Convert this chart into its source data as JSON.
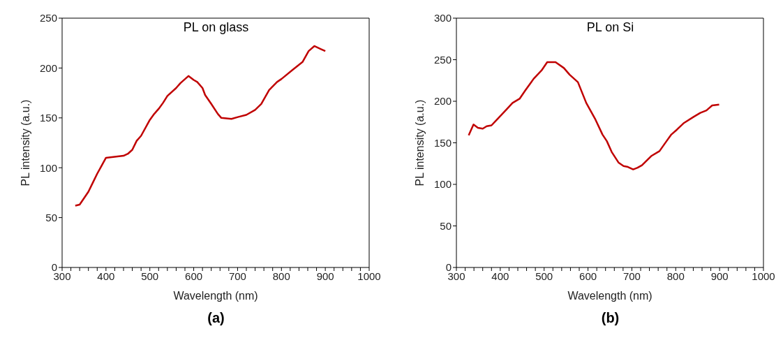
{
  "chart_data": [
    {
      "type": "line",
      "title": "PL on glass",
      "xlabel": "Wavelength (nm)",
      "ylabel": "PL intensity (a.u.)",
      "annotations": [
        "(a)"
      ],
      "x": [
        330,
        340,
        360,
        370,
        380,
        390,
        400,
        420,
        440,
        450,
        460,
        470,
        480,
        500,
        510,
        520,
        530,
        540,
        560,
        570,
        588,
        600,
        608,
        620,
        626,
        640,
        655,
        663,
        686,
        702,
        720,
        740,
        754,
        772,
        790,
        800,
        825,
        848,
        862,
        875,
        890,
        900
      ],
      "series": [
        {
          "color": "#c00000",
          "values": [
            62,
            63,
            76,
            85,
            94,
            102,
            110,
            111,
            112,
            114,
            118,
            127,
            132,
            148,
            154,
            159,
            165,
            172,
            180,
            185,
            192,
            188,
            186,
            180,
            173,
            164,
            154,
            150,
            149,
            151,
            153,
            158,
            164,
            178,
            186,
            189,
            198,
            206,
            217,
            222,
            219,
            217
          ]
        }
      ],
      "xlim": [
        300,
        1000
      ],
      "ylim": [
        0,
        250
      ],
      "xticks": [
        300,
        {
          "value": 320,
          "label": null
        },
        {
          "value": 340,
          "label": null
        },
        {
          "value": 360,
          "label": null
        },
        {
          "value": 380,
          "label": null
        },
        400,
        {
          "value": 420,
          "label": null
        },
        {
          "value": 440,
          "label": null
        },
        {
          "value": 460,
          "label": null
        },
        {
          "value": 480,
          "label": null
        },
        500,
        {
          "value": 520,
          "label": null
        },
        {
          "value": 540,
          "label": null
        },
        {
          "value": 560,
          "label": null
        },
        {
          "value": 580,
          "label": null
        },
        600,
        {
          "value": 620,
          "label": null
        },
        {
          "value": 640,
          "label": null
        },
        {
          "value": 660,
          "label": null
        },
        {
          "value": 680,
          "label": null
        },
        700,
        {
          "value": 720,
          "label": null
        },
        {
          "value": 740,
          "label": null
        },
        {
          "value": 760,
          "label": null
        },
        {
          "value": 780,
          "label": null
        },
        800,
        {
          "value": 820,
          "label": null
        },
        {
          "value": 840,
          "label": null
        },
        {
          "value": 860,
          "label": null
        },
        {
          "value": 880,
          "label": null
        },
        900,
        {
          "value": 920,
          "label": null
        },
        {
          "value": 940,
          "label": null
        },
        {
          "value": 960,
          "label": null
        },
        {
          "value": 980,
          "label": null
        },
        1000
      ],
      "yticks": [
        0,
        50,
        100,
        150,
        200,
        250
      ]
    },
    {
      "type": "line",
      "title": "PL on Si",
      "xlabel": "Wavelength (nm)",
      "ylabel": "PL intensity (a.u.)",
      "annotations": [
        "(b)"
      ],
      "x": [
        328,
        339,
        349,
        360,
        369,
        380,
        396,
        414,
        428,
        444,
        457,
        476,
        494,
        507,
        526,
        545,
        558,
        577,
        596,
        617,
        633,
        643,
        654,
        670,
        681,
        691,
        703,
        713,
        723,
        744,
        763,
        779,
        790,
        803,
        819,
        840,
        856,
        870,
        883,
        899
      ],
      "series": [
        {
          "color": "#c00000",
          "values": [
            159,
            172,
            168,
            167,
            170,
            171,
            180,
            190,
            198,
            203,
            213,
            227,
            237,
            247,
            247,
            240,
            232,
            223,
            198,
            178,
            160,
            152,
            139,
            126,
            122,
            121,
            118,
            120,
            123,
            134,
            140,
            152,
            160,
            166,
            174,
            181,
            186,
            189,
            195,
            196
          ]
        }
      ],
      "xlim": [
        300,
        1000
      ],
      "ylim": [
        0,
        300
      ],
      "xticks": [
        300,
        {
          "value": 320,
          "label": null
        },
        {
          "value": 340,
          "label": null
        },
        {
          "value": 360,
          "label": null
        },
        {
          "value": 380,
          "label": null
        },
        400,
        {
          "value": 420,
          "label": null
        },
        {
          "value": 440,
          "label": null
        },
        {
          "value": 460,
          "label": null
        },
        {
          "value": 480,
          "label": null
        },
        500,
        {
          "value": 520,
          "label": null
        },
        {
          "value": 540,
          "label": null
        },
        {
          "value": 560,
          "label": null
        },
        {
          "value": 580,
          "label": null
        },
        600,
        {
          "value": 620,
          "label": null
        },
        {
          "value": 640,
          "label": null
        },
        {
          "value": 660,
          "label": null
        },
        {
          "value": 680,
          "label": null
        },
        700,
        {
          "value": 720,
          "label": null
        },
        {
          "value": 740,
          "label": null
        },
        {
          "value": 760,
          "label": null
        },
        {
          "value": 780,
          "label": null
        },
        800,
        {
          "value": 820,
          "label": null
        },
        {
          "value": 840,
          "label": null
        },
        {
          "value": 860,
          "label": null
        },
        {
          "value": 880,
          "label": null
        },
        900,
        {
          "value": 920,
          "label": null
        },
        {
          "value": 940,
          "label": null
        },
        {
          "value": 960,
          "label": null
        },
        {
          "value": 980,
          "label": null
        },
        1000
      ],
      "yticks": [
        0,
        50,
        100,
        150,
        200,
        250,
        300
      ]
    }
  ]
}
